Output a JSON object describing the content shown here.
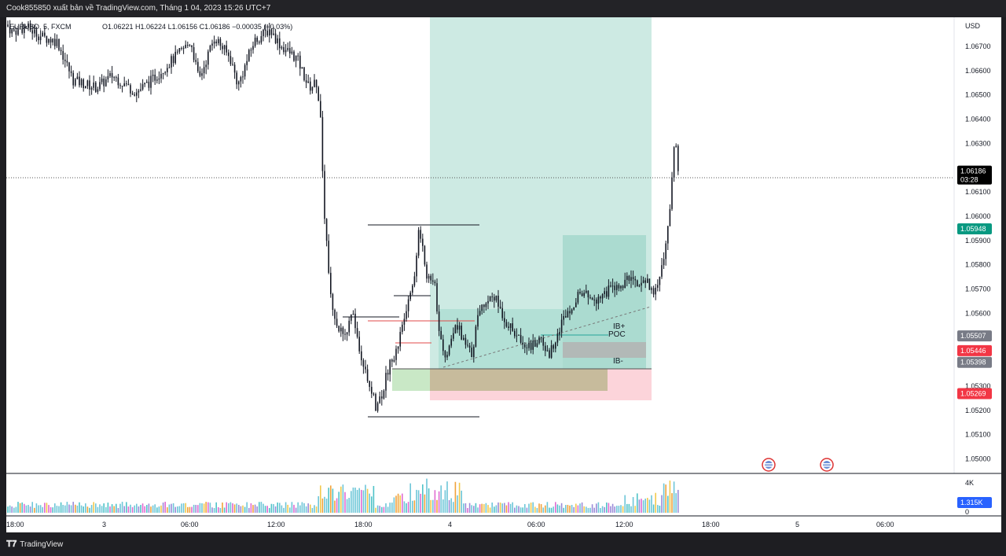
{
  "header": {
    "publisher_text": "Cook855850 xuất bản về TradingView.com, Tháng 1 04, 2023 15:26 UTC+7"
  },
  "legend": {
    "symbol": "EURUSD, 5, FXCM",
    "ohlc": "O1.06221  H1.06224  L1.06156  C1.06186  −0.00035 (−0.03%)"
  },
  "price_axis": {
    "currency": "USD",
    "ticks": [
      "1.06700",
      "1.06600",
      "1.06500",
      "1.06400",
      "1.06300",
      "1.06100",
      "1.06000",
      "1.05900",
      "1.05800",
      "1.05700",
      "1.05600",
      "1.05300",
      "1.05200",
      "1.05100",
      "1.05000"
    ]
  },
  "time_axis": {
    "labels": [
      "18:00",
      "3",
      "06:00",
      "12:00",
      "18:00",
      "4",
      "06:00",
      "12:00",
      "18:00",
      "5",
      "06:00"
    ]
  },
  "price_badges": [
    {
      "price": "1.06186",
      "sub": "03:28",
      "color": "#000000",
      "name": "last-price-badge"
    },
    {
      "price": "1.05948",
      "color": "#089981",
      "name": "take-profit-badge"
    },
    {
      "price": "1.05507",
      "color": "#787b86",
      "name": "vah-badge"
    },
    {
      "price": "1.05446",
      "color": "#f23645",
      "name": "stop-level-badge"
    },
    {
      "price": "1.05398",
      "color": "#787b86",
      "name": "entry-badge"
    },
    {
      "price": "1.05269",
      "color": "#f23645",
      "name": "stop-loss-badge"
    }
  ],
  "volume_axis": {
    "top_label": "4K",
    "zero_label": "0",
    "badge": "1.315K",
    "badge_color": "#2962ff"
  },
  "annotations": {
    "ib_plus": "IB+",
    "poc": "POC",
    "ib_minus": "IB-"
  },
  "footer": {
    "brand": "TradingView"
  },
  "colors": {
    "up": "#26a69a",
    "down": "#ef5350",
    "candle": "#131722",
    "target_zone": "#bfe6dc",
    "stop_zone": "#fcd1d6",
    "range_box": "#9fd8cc",
    "demand_box": "#c9b99a",
    "green_box": "#c8e6c9"
  },
  "chart_data": {
    "type": "candlestick",
    "symbol": "EURUSD",
    "timeframe": "5",
    "ylim": [
      1.0494,
      1.0682
    ],
    "price_path_control": [
      [
        0,
        1.0679
      ],
      [
        8,
        1.0676
      ],
      [
        25,
        1.0678
      ],
      [
        45,
        1.0674
      ],
      [
        65,
        1.0672
      ],
      [
        85,
        1.0656
      ],
      [
        115,
        1.0653
      ],
      [
        135,
        1.0658
      ],
      [
        165,
        1.0651
      ],
      [
        185,
        1.0656
      ],
      [
        210,
        1.0664
      ],
      [
        235,
        1.0672
      ],
      [
        245,
        1.0656
      ],
      [
        265,
        1.0674
      ],
      [
        285,
        1.0665
      ],
      [
        295,
        1.0654
      ],
      [
        315,
        1.0672
      ],
      [
        335,
        1.0677
      ],
      [
        350,
        1.067
      ],
      [
        370,
        1.0665
      ],
      [
        385,
        1.0653
      ],
      [
        395,
        1.0655
      ],
      [
        400,
        1.064
      ],
      [
        405,
        1.06
      ],
      [
        412,
        1.057
      ],
      [
        420,
        1.0555
      ],
      [
        430,
        1.055
      ],
      [
        440,
        1.056
      ],
      [
        450,
        1.0545
      ],
      [
        460,
        1.0533
      ],
      [
        470,
        1.0522
      ],
      [
        478,
        1.0527
      ],
      [
        488,
        1.054
      ],
      [
        497,
        1.0545
      ],
      [
        510,
        1.0563
      ],
      [
        520,
        1.0576
      ],
      [
        525,
        1.0596
      ],
      [
        535,
        1.0575
      ],
      [
        545,
        1.0572
      ],
      [
        552,
        1.055
      ],
      [
        560,
        1.0542
      ],
      [
        572,
        1.0557
      ],
      [
        582,
        1.0548
      ],
      [
        592,
        1.0543
      ],
      [
        602,
        1.0562
      ],
      [
        620,
        1.0568
      ],
      [
        635,
        1.0557
      ],
      [
        650,
        1.055
      ],
      [
        668,
        1.0546
      ],
      [
        680,
        1.055
      ],
      [
        690,
        1.0542
      ],
      [
        700,
        1.0551
      ],
      [
        712,
        1.056
      ],
      [
        730,
        1.0568
      ],
      [
        750,
        1.0566
      ],
      [
        770,
        1.057
      ],
      [
        785,
        1.0571
      ],
      [
        795,
        1.0577
      ],
      [
        805,
        1.057
      ],
      [
        815,
        1.0574
      ],
      [
        822,
        1.0568
      ],
      [
        828,
        1.0572
      ],
      [
        838,
        1.0585
      ],
      [
        845,
        1.0605
      ],
      [
        850,
        1.063
      ],
      [
        853,
        1.0628
      ],
      [
        856,
        1.06186
      ]
    ],
    "levels": {
      "upper_marker": 1.0599,
      "lower_marker": 1.0519,
      "entry": 1.05398,
      "take_profit": 1.05948,
      "stop_loss": 1.05269
    },
    "volume_max": 4000,
    "last_volume": 1315
  }
}
